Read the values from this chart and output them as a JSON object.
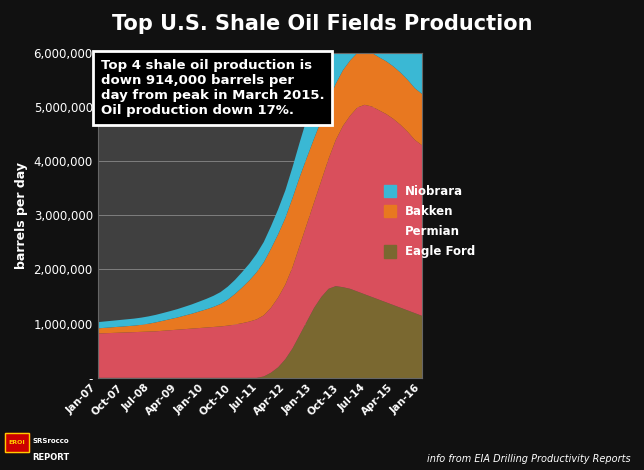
{
  "title": "Top U.S. Shale Oil Fields Production",
  "ylabel": "barrels per day",
  "background_color": "#111111",
  "plot_background": "#404040",
  "title_color": "#ffffff",
  "label_color": "#ffffff",
  "annotation_text": "Top 4 shale oil production is\ndown 914,000 barrels per\nday from peak in March 2015.\nOil production down 17%.",
  "footer_right": "info from EIA Drilling Productivity Reports",
  "x_labels": [
    "Jan-07",
    "Oct-07",
    "Jul-08",
    "Apr-09",
    "Jan-10",
    "Oct-10",
    "Jul-11",
    "Apr-12",
    "Jan-13",
    "Oct-13",
    "Jul-14",
    "Apr-15",
    "Jan-16"
  ],
  "ylim": [
    0,
    6000000
  ],
  "yticks": [
    0,
    1000000,
    2000000,
    3000000,
    4000000,
    5000000,
    6000000
  ],
  "series": {
    "Eagle Ford": {
      "color": "#7a6830",
      "values": [
        5000,
        5000,
        5000,
        5000,
        5000,
        5000,
        5000,
        5000,
        5000,
        5000,
        5000,
        5000,
        5000,
        5000,
        5000,
        5000,
        5000,
        5000,
        5000,
        5000,
        5000,
        5000,
        5000,
        30000,
        100000,
        200000,
        350000,
        550000,
        800000,
        1050000,
        1300000,
        1500000,
        1650000,
        1700000,
        1680000,
        1650000,
        1600000,
        1550000,
        1500000,
        1450000,
        1400000,
        1350000,
        1300000,
        1250000,
        1200000,
        1150000
      ]
    },
    "Permian": {
      "color": "#d94f5c",
      "values": [
        820000,
        825000,
        830000,
        835000,
        840000,
        845000,
        850000,
        855000,
        860000,
        870000,
        880000,
        890000,
        900000,
        910000,
        920000,
        930000,
        940000,
        950000,
        965000,
        985000,
        1010000,
        1040000,
        1080000,
        1130000,
        1200000,
        1290000,
        1380000,
        1500000,
        1650000,
        1800000,
        1950000,
        2150000,
        2400000,
        2700000,
        2980000,
        3200000,
        3400000,
        3500000,
        3520000,
        3500000,
        3480000,
        3440000,
        3380000,
        3300000,
        3200000,
        3150000
      ]
    },
    "Bakken": {
      "color": "#e87820",
      "values": [
        95000,
        100000,
        105000,
        110000,
        115000,
        120000,
        130000,
        145000,
        165000,
        185000,
        205000,
        225000,
        250000,
        275000,
        305000,
        335000,
        370000,
        415000,
        480000,
        565000,
        660000,
        760000,
        870000,
        980000,
        1090000,
        1170000,
        1230000,
        1280000,
        1270000,
        1230000,
        1180000,
        1120000,
        1070000,
        1040000,
        1030000,
        1020000,
        1010000,
        1000000,
        990000,
        980000,
        975000,
        970000,
        965000,
        960000,
        955000,
        950000
      ]
    },
    "Niobrara": {
      "color": "#3ab8d4",
      "values": [
        115000,
        118000,
        121000,
        124000,
        127000,
        130000,
        133000,
        136000,
        139000,
        143000,
        148000,
        155000,
        163000,
        172000,
        182000,
        193000,
        205000,
        220000,
        240000,
        260000,
        285000,
        310000,
        340000,
        375000,
        415000,
        460000,
        510000,
        570000,
        640000,
        720000,
        800000,
        880000,
        960000,
        1020000,
        1050000,
        1060000,
        1050000,
        1030000,
        1010000,
        990000,
        970000,
        955000,
        940000,
        925000,
        910000,
        895000
      ]
    }
  },
  "n_points": 46
}
